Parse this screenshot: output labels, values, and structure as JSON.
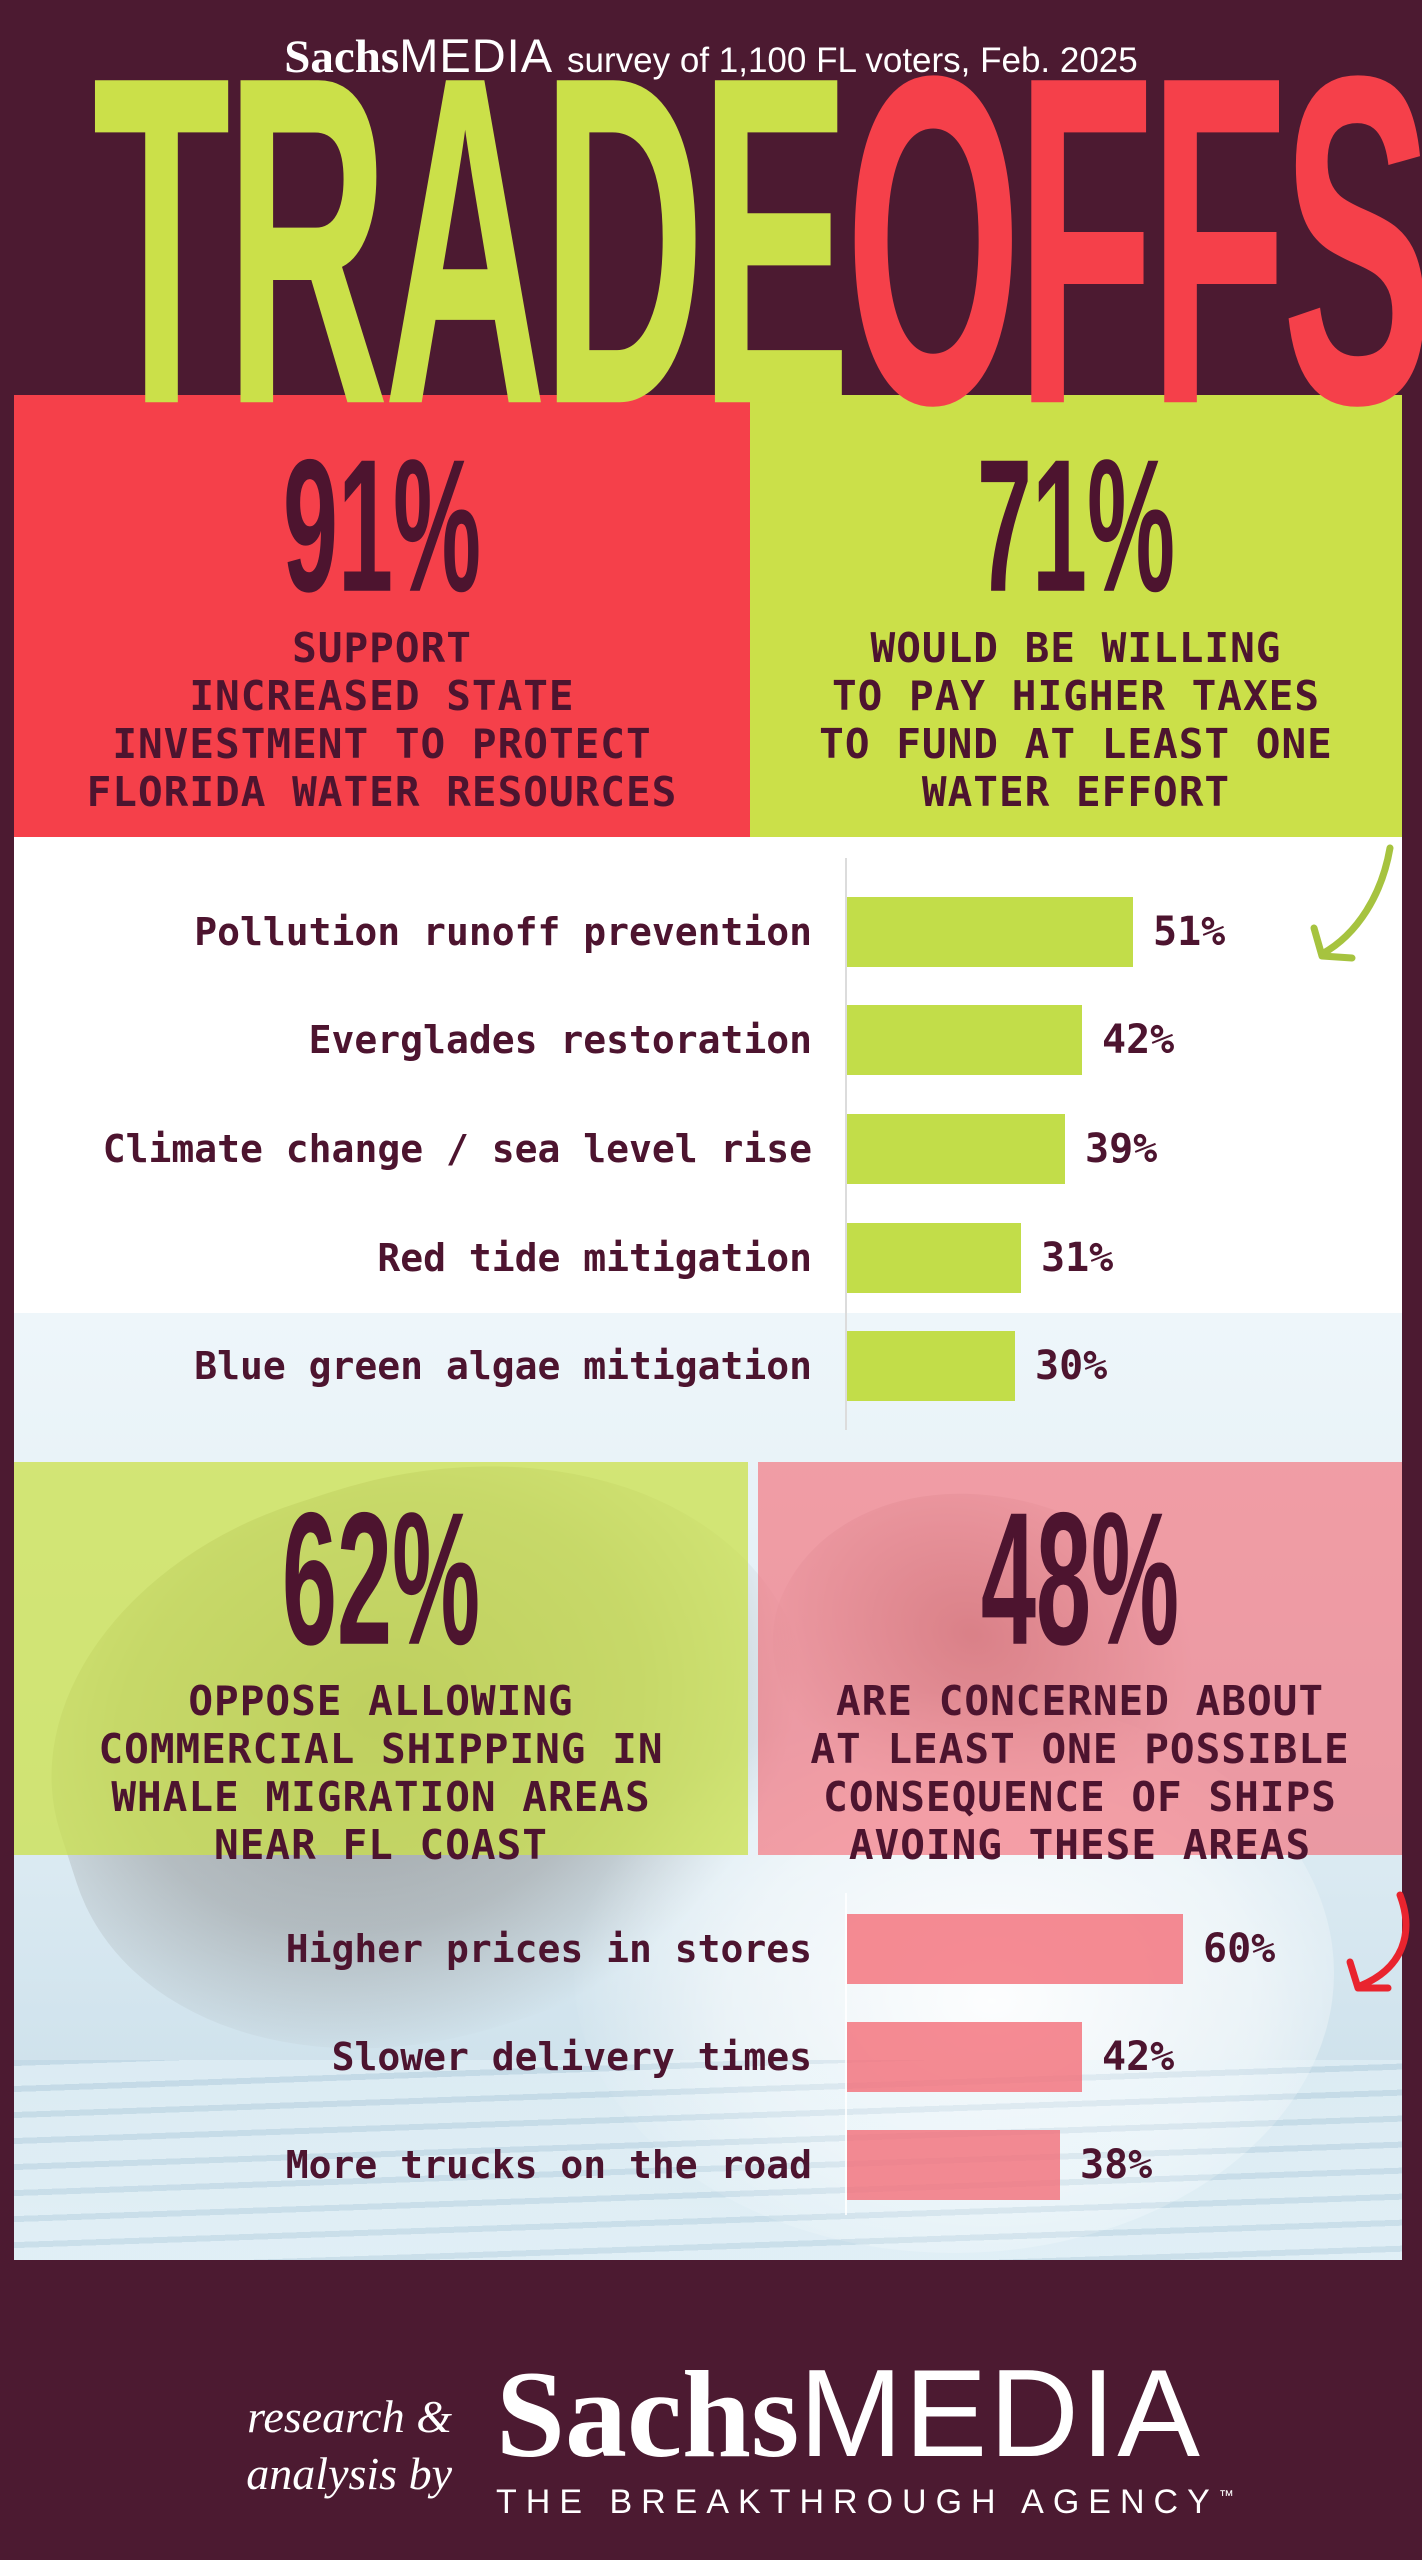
{
  "header": {
    "brand_serif": "Sachs",
    "brand_sans": "MEDIA",
    "subtitle": "survey of 1,100 FL voters, Feb. 2025"
  },
  "title": {
    "left": "TRADE",
    "right": "OFFS"
  },
  "stats": [
    {
      "value": "91%",
      "caption_lines": [
        "SUPPORT",
        "INCREASED STATE",
        "INVESTMENT TO PROTECT",
        "FLORIDA WATER RESOURCES"
      ]
    },
    {
      "value": "71%",
      "caption_lines": [
        "WOULD BE WILLING",
        "TO PAY HIGHER TAXES",
        "TO FUND AT LEAST ONE",
        "WATER EFFORT"
      ]
    },
    {
      "value": "62%",
      "caption_lines": [
        "OPPOSE ALLOWING",
        "COMMERCIAL SHIPPING IN",
        "WHALE MIGRATION AREAS",
        "NEAR FL COAST"
      ]
    },
    {
      "value": "48%",
      "caption_lines": [
        "ARE CONCERNED ABOUT",
        "AT LEAST ONE POSSIBLE",
        "CONSEQUENCE OF SHIPS",
        "AVOING THESE AREAS"
      ]
    }
  ],
  "chart_data": [
    {
      "type": "bar",
      "orientation": "horizontal",
      "categories": [
        "Pollution runoff prevention",
        "Everglades restoration",
        "Climate change / sea level rise",
        "Red tide mitigation",
        "Blue green algae mitigation"
      ],
      "values": [
        51,
        42,
        39,
        31,
        30
      ],
      "value_labels": [
        "51%",
        "42%",
        "39%",
        "31%",
        "30%"
      ],
      "xlim": [
        0,
        100
      ],
      "grid": false,
      "bar_color": "#c2dd49",
      "context": "water efforts voters would pay higher taxes to fund"
    },
    {
      "type": "bar",
      "orientation": "horizontal",
      "categories": [
        "Higher prices in stores",
        "Slower delivery times",
        "More trucks on the road"
      ],
      "values": [
        60,
        42,
        38
      ],
      "value_labels": [
        "60%",
        "42%",
        "38%"
      ],
      "xlim": [
        0,
        100
      ],
      "grid": false,
      "bar_color": "#f36a74",
      "context": "possible consequences of ships avoiding whale migration areas"
    }
  ],
  "footer": {
    "credit_line1": "research &",
    "credit_line2": "analysis by",
    "brand_serif": "Sachs",
    "brand_sans": "MEDIA",
    "tagline": "THE BREAKTHROUGH AGENCY",
    "trademark": "™"
  },
  "colors": {
    "background_maroon": "#4c1a31",
    "red": "#f5404a",
    "lime": "#cbe049",
    "dark_text": "#4d142f",
    "bar_lime": "#c2dd49",
    "bar_pink": "#f36a74",
    "green_overlay": "rgba(203,224,73,0.75)",
    "pink_overlay": "rgba(245,85,97,0.55)",
    "white": "#ffffff",
    "arrow_green": "#a6c33f",
    "arrow_red": "#e9242e"
  }
}
